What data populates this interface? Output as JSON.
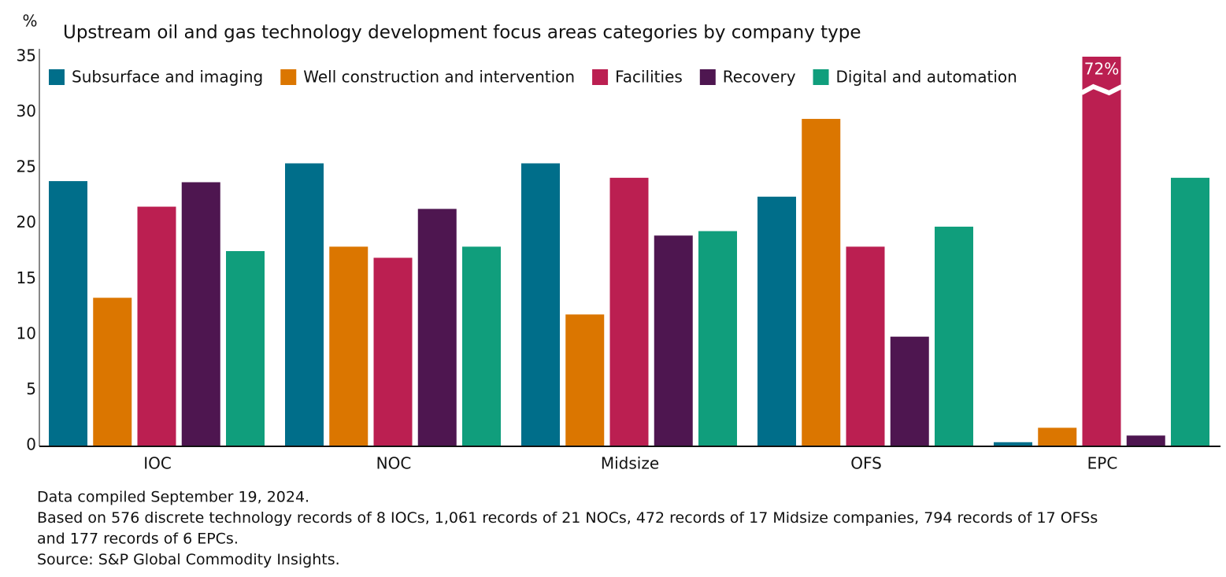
{
  "chart_data": {
    "type": "bar",
    "title": "Upstream oil and gas technology development focus areas categories by company type",
    "ylabel": "%",
    "categories": [
      "IOC",
      "NOC",
      "Midsize",
      "OFS",
      "EPC"
    ],
    "series": [
      {
        "name": "Subsurface and imaging",
        "color": "#006e8a",
        "values": [
          23.8,
          25.4,
          25.4,
          22.4,
          0.3
        ]
      },
      {
        "name": "Well construction and intervention",
        "color": "#db7600",
        "values": [
          13.3,
          17.9,
          11.8,
          29.4,
          1.6
        ]
      },
      {
        "name": "Facilities",
        "color": "#bb1f51",
        "values": [
          21.5,
          16.9,
          24.1,
          17.9,
          72
        ],
        "value_labels": [
          null,
          null,
          null,
          null,
          "72%"
        ]
      },
      {
        "name": "Recovery",
        "color": "#4e1650",
        "values": [
          23.7,
          21.3,
          18.9,
          9.8,
          0.9
        ]
      },
      {
        "name": "Digital and automation",
        "color": "#109e7c",
        "values": [
          17.5,
          17.9,
          19.3,
          19.7,
          24.1
        ]
      }
    ],
    "ylim": [
      0,
      35
    ],
    "yticks": [
      0,
      5,
      10,
      15,
      20,
      25,
      30,
      35
    ],
    "legend": "top-left",
    "notes": [
      "Data compiled September 19, 2024.",
      "Based on 576 discrete technology records of 8 IOCs, 1,061 records of 21 NOCs, 472 records of 17 Midsize companies, 794 records of 17 OFSs",
      "and 177 records of 6 EPCs.",
      "Source: S&P Global Commodity Insights."
    ]
  }
}
